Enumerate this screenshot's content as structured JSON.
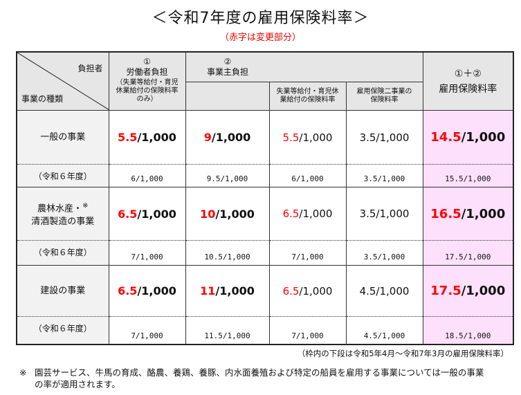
{
  "title": "＜令和7年度の雇用保険料率＞",
  "subtitle": "（赤字は変更部分）",
  "header": {
    "corner_top": "負担者",
    "corner_bottom": "事業の種類",
    "worker_num": "①",
    "worker_label": "労働者負担",
    "worker_note": "（失業等給付・育児休業給付の保険料率のみ）",
    "employer_num": "②",
    "employer_label": "事業主負担",
    "employer_sub1": "失業等給付・育児休業給付の保険料率",
    "employer_sub2": "雇用保険二事業の保険料率",
    "total_num": "①＋②",
    "total_label": "雇用保険料率"
  },
  "rows": [
    {
      "kind": "一般の事業",
      "prev_label": "（令和６年度）",
      "values": [
        {
          "red": "5.5",
          "rest": "/1,000"
        },
        {
          "red": "9",
          "rest": "/1,000"
        },
        {
          "red": "5.5",
          "rest": "/1,000"
        },
        {
          "red": "",
          "rest": "3.5/1,000"
        },
        {
          "red": "14.5",
          "rest": "/1,000"
        }
      ],
      "prev": [
        "6/1,000",
        "9.5/1,000",
        "6/1,000",
        "3.5/1,000",
        "15.5/1,000"
      ]
    },
    {
      "kind": "農林水産・※清酒製造の事業",
      "kind_line1": "農林水産・",
      "kind_mark": "※",
      "kind_line2": "清酒製造の事業",
      "prev_label": "（令和６年度）",
      "values": [
        {
          "red": "6.5",
          "rest": "/1,000"
        },
        {
          "red": "10",
          "rest": "/1,000"
        },
        {
          "red": "6.5",
          "rest": "/1,000"
        },
        {
          "red": "",
          "rest": "3.5/1,000"
        },
        {
          "red": "16.5",
          "rest": "/1,000"
        }
      ],
      "prev": [
        "7/1,000",
        "10.5/1,000",
        "7/1,000",
        "3.5/1,000",
        "17.5/1,000"
      ]
    },
    {
      "kind": "建設の事業",
      "prev_label": "（令和６年度）",
      "values": [
        {
          "red": "6.5",
          "rest": "/1,000"
        },
        {
          "red": "11",
          "rest": "/1,000"
        },
        {
          "red": "6.5",
          "rest": "/1,000"
        },
        {
          "red": "",
          "rest": "4.5/1,000"
        },
        {
          "red": "17.5",
          "rest": "/1,000"
        }
      ],
      "prev": [
        "7/1,000",
        "11.5/1,000",
        "7/1,000",
        "4.5/1,000",
        "18.5/1,000"
      ]
    }
  ],
  "note": "（枠内の下段は令和5年4月～令和7年3月の雇用保険料率）",
  "footnote_mark": "※",
  "footnote": "園芸サービス、牛馬の育成、酪農、養鶏、養豚、内水面養殖および特定の船員を雇用する事業については一般の事業の率が適用されます。",
  "colors": {
    "changed": "#ff0000",
    "total_bg": "#fde0fb",
    "header_bg": "#e6e6e6"
  }
}
